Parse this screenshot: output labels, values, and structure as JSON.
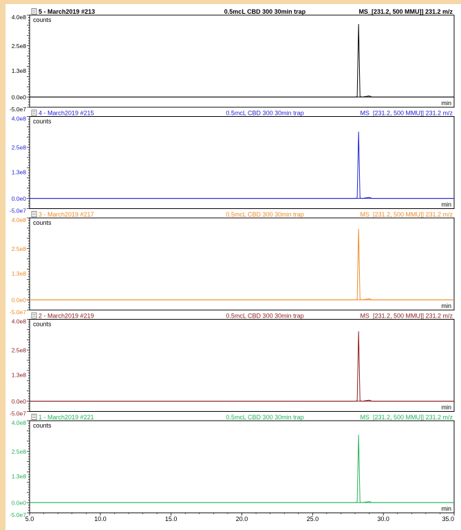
{
  "x_axis": {
    "ticks": [
      "5.0",
      "10.0",
      "15.0",
      "20.0",
      "25.0",
      "30.0",
      "35.0"
    ],
    "tick_values": [
      5,
      10,
      15,
      20,
      25,
      30,
      35
    ],
    "xlim": [
      5,
      35
    ]
  },
  "panels": [
    {
      "title": "5 - March2019 #213",
      "method": "0.5mcL CBD 300 30min trap",
      "filter": "MS_[231.2, 500 MMU]] 231.2 m/z",
      "y_unit": "counts",
      "x_unit": "min",
      "color": "#000000",
      "bold": true,
      "y_ticks": [
        "4.0e8",
        "2.5e8",
        "1.3e8",
        "0.0e0",
        "-5.0e7"
      ]
    },
    {
      "title": "4 - March2019 #215",
      "method": "0.5mcL CBD 300 30min trap",
      "filter": "MS_[231.2, 500 MMU]] 231.2 m/z",
      "y_unit": "counts",
      "x_unit": "min",
      "color": "#1f1fd6",
      "bold": false,
      "y_ticks": [
        "4.0e8",
        "2.5e8",
        "1.3e8",
        "0.0e0",
        "-5.0e7"
      ]
    },
    {
      "title": "3 - March2019 #217",
      "method": "0.5mcL CBD 300 30min trap",
      "filter": "MS_[231.2, 500 MMU]] 231.2 m/z",
      "y_unit": "counts",
      "x_unit": "min",
      "color": "#f08a24",
      "bold": false,
      "y_ticks": [
        "4.0e8",
        "2.5e8",
        "1.3e8",
        "0.0e0",
        "-5.0e7"
      ]
    },
    {
      "title": "2 - March2019 #219",
      "method": "0.5mcL CBD 300 30min trap",
      "filter": "MS_[231.2, 500 MMU]] 231.2 m/z",
      "y_unit": "counts",
      "x_unit": "min",
      "color": "#8b1a1a",
      "bold": false,
      "y_ticks": [
        "4.0e8",
        "2.5e8",
        "1.3e8",
        "0.0e0",
        "-5.0e7"
      ]
    },
    {
      "title": "1 - March2019 #221",
      "method": "0.5mcL CBD 300 30min trap",
      "filter": "MS_[231.2, 500 MMU]] 231.2 m/z",
      "y_unit": "counts",
      "x_unit": "min",
      "color": "#22b357",
      "bold": false,
      "y_ticks": [
        "4.0e8",
        "2.5e8",
        "1.3e8",
        "0.0e0",
        "-5.0e7"
      ]
    }
  ],
  "chart_data": [
    {
      "type": "line",
      "title": "5 - March2019 #213",
      "xlabel": "min",
      "ylabel": "counts",
      "ylim": [
        -50000000,
        400000000
      ],
      "xlim": [
        5,
        35
      ],
      "series": [
        {
          "name": "MS_[231.2, 500 MMU]] 231.2 m/z",
          "x": [
            5,
            28.0,
            28.15,
            28.25,
            28.35,
            28.5,
            28.8,
            29.0,
            29.2,
            35
          ],
          "y": [
            0,
            0,
            2000000,
            355000000,
            2000000,
            0,
            3000000,
            5000000,
            0,
            0
          ]
        }
      ]
    },
    {
      "type": "line",
      "title": "4 - March2019 #215",
      "xlabel": "min",
      "ylabel": "counts",
      "ylim": [
        -50000000,
        400000000
      ],
      "xlim": [
        5,
        35
      ],
      "series": [
        {
          "name": "MS_[231.2, 500 MMU]] 231.2 m/z",
          "x": [
            5,
            28.0,
            28.15,
            28.25,
            28.35,
            28.5,
            28.8,
            29.0,
            29.2,
            35
          ],
          "y": [
            0,
            0,
            2000000,
            325000000,
            2000000,
            0,
            3000000,
            5000000,
            0,
            0
          ]
        }
      ]
    },
    {
      "type": "line",
      "title": "3 - March2019 #217",
      "xlabel": "min",
      "ylabel": "counts",
      "ylim": [
        -50000000,
        400000000
      ],
      "xlim": [
        5,
        35
      ],
      "series": [
        {
          "name": "MS_[231.2, 500 MMU]] 231.2 m/z",
          "x": [
            5,
            28.0,
            28.15,
            28.25,
            28.35,
            28.5,
            28.8,
            29.0,
            29.2,
            35
          ],
          "y": [
            0,
            0,
            2000000,
            345000000,
            2000000,
            0,
            3000000,
            5000000,
            0,
            0
          ]
        }
      ]
    },
    {
      "type": "line",
      "title": "2 - March2019 #219",
      "xlabel": "min",
      "ylabel": "counts",
      "ylim": [
        -50000000,
        400000000
      ],
      "xlim": [
        5,
        35
      ],
      "series": [
        {
          "name": "MS_[231.2, 500 MMU]] 231.2 m/z",
          "x": [
            5,
            28.0,
            28.15,
            28.25,
            28.35,
            28.5,
            28.8,
            29.0,
            29.2,
            35
          ],
          "y": [
            0,
            0,
            2000000,
            340000000,
            2000000,
            0,
            3000000,
            5000000,
            0,
            0
          ]
        }
      ]
    },
    {
      "type": "line",
      "title": "1 - March2019 #221",
      "xlabel": "min",
      "ylabel": "counts",
      "ylim": [
        -50000000,
        400000000
      ],
      "xlim": [
        5,
        35
      ],
      "series": [
        {
          "name": "MS_[231.2, 500 MMU]] 231.2 m/z",
          "x": [
            5,
            28.0,
            28.15,
            28.25,
            28.35,
            28.5,
            28.8,
            29.0,
            29.2,
            35
          ],
          "y": [
            0,
            0,
            2000000,
            330000000,
            2000000,
            0,
            3000000,
            5000000,
            0,
            0
          ]
        }
      ]
    }
  ]
}
